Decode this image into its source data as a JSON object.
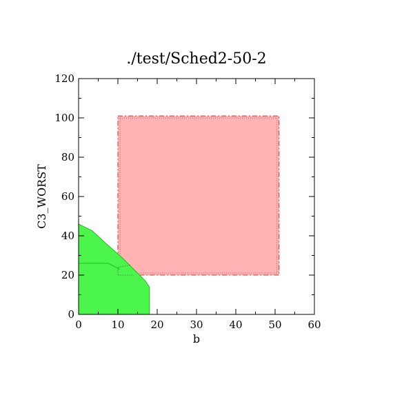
{
  "chart_data": {
    "type": "area",
    "title": "./test/Sched2-50-2",
    "xlabel": "b",
    "ylabel": "C3_WORST",
    "xlim": [
      0,
      60
    ],
    "ylim": [
      0,
      120
    ],
    "xticks": [
      0,
      10,
      20,
      30,
      40,
      50,
      60
    ],
    "yticks": [
      0,
      20,
      40,
      60,
      80,
      100,
      120
    ],
    "xtick_labels": [
      "0",
      "10",
      "20",
      "30",
      "40",
      "50",
      "60"
    ],
    "ytick_labels": [
      "0",
      "20",
      "40",
      "60",
      "80",
      "100",
      "120"
    ],
    "grid": false,
    "colors": {
      "red_fill": "#ffb3b3",
      "red_edge": "#cc3333",
      "green_fill": "#4cf54c",
      "green_edge": "#1fbf1f"
    },
    "regions": [
      {
        "id": "red",
        "x": [
          10,
          51,
          51,
          10
        ],
        "y": [
          101,
          101,
          20,
          20
        ]
      },
      {
        "id": "green",
        "x": [
          0,
          0,
          3.5,
          7,
          11,
          13,
          15,
          17,
          18,
          18
        ],
        "y": [
          0,
          46,
          42.5,
          36,
          29,
          25,
          21,
          17,
          14,
          0
        ]
      }
    ],
    "lines": [
      {
        "id": "green-inner",
        "x": [
          0,
          7.5,
          10.5
        ],
        "y": [
          26,
          26,
          23
        ]
      },
      {
        "id": "dotted-overlap",
        "x": [
          13,
          10,
          10,
          14
        ],
        "y": [
          25,
          24,
          20,
          20
        ]
      }
    ]
  }
}
